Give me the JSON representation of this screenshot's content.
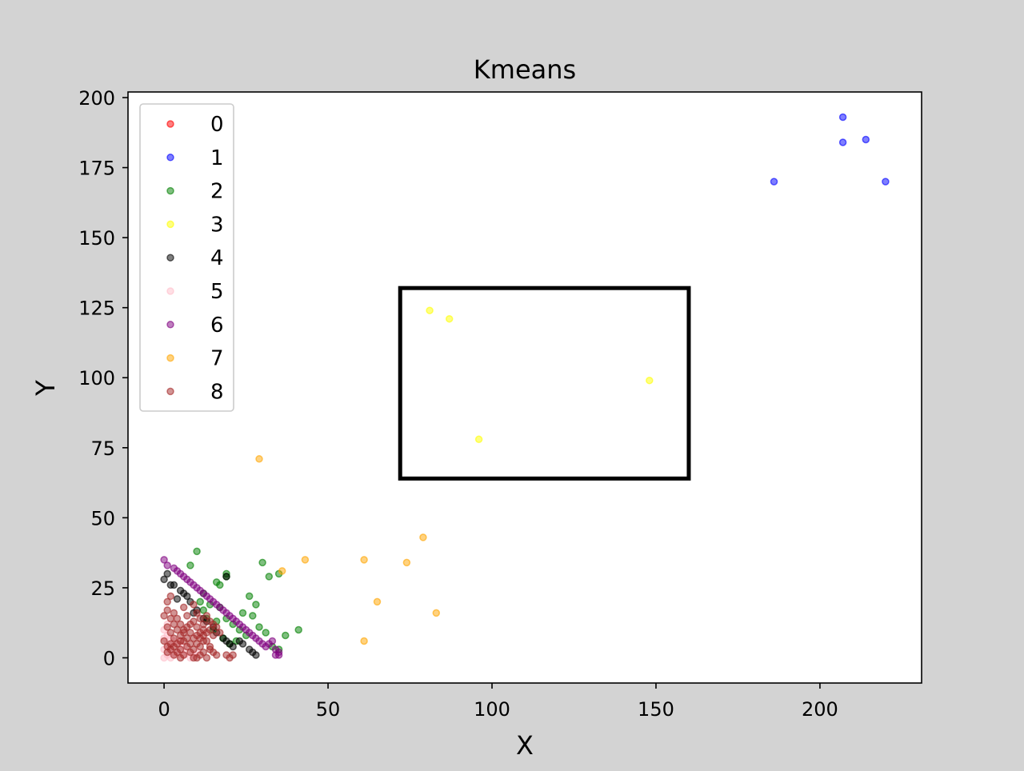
{
  "chart_data": {
    "type": "scatter",
    "title": "Kmeans",
    "xlabel": "X",
    "ylabel": "Y",
    "xlim": [
      -11,
      231
    ],
    "ylim": [
      -9,
      202
    ],
    "xticks": [
      0,
      50,
      100,
      150,
      200
    ],
    "yticks": [
      0,
      25,
      50,
      75,
      100,
      125,
      150,
      175,
      200
    ],
    "grid": false,
    "legend_position": "top-left",
    "highlight_box": {
      "x": [
        72,
        160
      ],
      "y": [
        64,
        132
      ],
      "color": "#000000"
    },
    "series": [
      {
        "name": "0",
        "color": "#ff0000",
        "points": []
      },
      {
        "name": "1",
        "color": "#0000ff",
        "points": [
          [
            186,
            170
          ],
          [
            207,
            193
          ],
          [
            207,
            184
          ],
          [
            214,
            185
          ],
          [
            220,
            170
          ]
        ]
      },
      {
        "name": "2",
        "color": "#008000",
        "points": [
          [
            10,
            38
          ],
          [
            19,
            30
          ],
          [
            19,
            29
          ],
          [
            16,
            27
          ],
          [
            17,
            26
          ],
          [
            8,
            33
          ],
          [
            30,
            34
          ],
          [
            32,
            29
          ],
          [
            35,
            30
          ],
          [
            26,
            22
          ],
          [
            28,
            19
          ],
          [
            24,
            16
          ],
          [
            27,
            15
          ],
          [
            12,
            23
          ],
          [
            14,
            19
          ],
          [
            17,
            18
          ],
          [
            19,
            14
          ],
          [
            21,
            12
          ],
          [
            23,
            10
          ],
          [
            25,
            8
          ],
          [
            29,
            11
          ],
          [
            31,
            9
          ],
          [
            37,
            8
          ],
          [
            41,
            10
          ],
          [
            33,
            4
          ],
          [
            35,
            3
          ],
          [
            22,
            6
          ],
          [
            20,
            5
          ],
          [
            18,
            7
          ],
          [
            15,
            10
          ],
          [
            13,
            14
          ],
          [
            12,
            17
          ],
          [
            16,
            13
          ],
          [
            11,
            20
          ]
        ]
      },
      {
        "name": "3",
        "color": "#ffff00",
        "points": [
          [
            81,
            124
          ],
          [
            87,
            121
          ],
          [
            96,
            78
          ],
          [
            148,
            99
          ]
        ]
      },
      {
        "name": "4",
        "color": "#000000",
        "points": [
          [
            0,
            28
          ],
          [
            1,
            30
          ],
          [
            2,
            26
          ],
          [
            3,
            26
          ],
          [
            5,
            24
          ],
          [
            6,
            23
          ],
          [
            7,
            22
          ],
          [
            9,
            16
          ],
          [
            10,
            17
          ],
          [
            12,
            14
          ],
          [
            13,
            13
          ],
          [
            15,
            11
          ],
          [
            16,
            9
          ],
          [
            18,
            7
          ],
          [
            19,
            6
          ],
          [
            20,
            5
          ],
          [
            21,
            4
          ],
          [
            23,
            6
          ],
          [
            24,
            5
          ],
          [
            26,
            3
          ],
          [
            27,
            2
          ],
          [
            28,
            1
          ],
          [
            19,
            29
          ],
          [
            8,
            20
          ],
          [
            4,
            21
          ]
        ]
      },
      {
        "name": "5",
        "color": "#ffc0cb",
        "points": [
          [
            0,
            0
          ],
          [
            1,
            1
          ],
          [
            2,
            0
          ],
          [
            3,
            2
          ],
          [
            4,
            1
          ],
          [
            5,
            3
          ],
          [
            6,
            1
          ],
          [
            7,
            2
          ],
          [
            8,
            0
          ],
          [
            0,
            3
          ],
          [
            1,
            5
          ],
          [
            2,
            4
          ],
          [
            3,
            6
          ],
          [
            4,
            5
          ],
          [
            0,
            7
          ],
          [
            1,
            8
          ],
          [
            2,
            7
          ],
          [
            5,
            6
          ],
          [
            6,
            4
          ],
          [
            0,
            10
          ],
          [
            1,
            12
          ],
          [
            9,
            1
          ],
          [
            10,
            2
          ]
        ]
      },
      {
        "name": "6",
        "color": "#800080",
        "points": [
          [
            0,
            35
          ],
          [
            1,
            33
          ],
          [
            3,
            32
          ],
          [
            4,
            31
          ],
          [
            5,
            30
          ],
          [
            6,
            29
          ],
          [
            7,
            28
          ],
          [
            8,
            27
          ],
          [
            9,
            26
          ],
          [
            10,
            25
          ],
          [
            11,
            24
          ],
          [
            12,
            23
          ],
          [
            13,
            22
          ],
          [
            14,
            21
          ],
          [
            15,
            20
          ],
          [
            16,
            19
          ],
          [
            17,
            18
          ],
          [
            18,
            17
          ],
          [
            19,
            16
          ],
          [
            20,
            15
          ],
          [
            21,
            14
          ],
          [
            22,
            13
          ],
          [
            23,
            12
          ],
          [
            24,
            11
          ],
          [
            25,
            10
          ],
          [
            26,
            9
          ],
          [
            27,
            8
          ],
          [
            28,
            7
          ],
          [
            29,
            6
          ],
          [
            30,
            5
          ],
          [
            31,
            4
          ],
          [
            32,
            5
          ],
          [
            33,
            6
          ],
          [
            34,
            3
          ],
          [
            35,
            2
          ],
          [
            35,
            1
          ],
          [
            34,
            1
          ]
        ]
      },
      {
        "name": "7",
        "color": "#ffa500",
        "points": [
          [
            29,
            71
          ],
          [
            36,
            31
          ],
          [
            43,
            35
          ],
          [
            61,
            35
          ],
          [
            65,
            20
          ],
          [
            61,
            6
          ],
          [
            74,
            34
          ],
          [
            79,
            43
          ],
          [
            83,
            16
          ]
        ]
      },
      {
        "name": "8",
        "color": "#a52a2a",
        "points": [
          [
            1,
            20
          ],
          [
            2,
            22
          ],
          [
            1,
            17
          ],
          [
            0,
            15
          ],
          [
            2,
            14
          ],
          [
            3,
            12
          ],
          [
            1,
            11
          ],
          [
            4,
            10
          ],
          [
            2,
            9
          ],
          [
            5,
            8
          ],
          [
            3,
            7
          ],
          [
            6,
            6
          ],
          [
            4,
            5
          ],
          [
            7,
            4
          ],
          [
            5,
            3
          ],
          [
            8,
            2
          ],
          [
            6,
            1
          ],
          [
            9,
            0
          ],
          [
            7,
            11
          ],
          [
            8,
            12
          ],
          [
            9,
            13
          ],
          [
            10,
            11
          ],
          [
            11,
            9
          ],
          [
            12,
            8
          ],
          [
            13,
            6
          ],
          [
            14,
            4
          ],
          [
            12,
            2
          ],
          [
            11,
            1
          ],
          [
            13,
            0
          ],
          [
            10,
            5
          ],
          [
            9,
            7
          ],
          [
            8,
            9
          ],
          [
            6,
            10
          ],
          [
            5,
            12
          ],
          [
            4,
            14
          ],
          [
            3,
            16
          ],
          [
            7,
            15
          ],
          [
            10,
            16
          ],
          [
            11,
            14
          ],
          [
            12,
            12
          ],
          [
            14,
            10
          ],
          [
            15,
            8
          ],
          [
            14,
            3
          ],
          [
            15,
            2
          ],
          [
            16,
            1
          ],
          [
            6,
            18
          ],
          [
            9,
            19
          ],
          [
            2,
            3
          ],
          [
            1,
            4
          ],
          [
            0,
            6
          ],
          [
            3,
            1
          ],
          [
            4,
            2
          ],
          [
            5,
            0
          ],
          [
            8,
            5
          ],
          [
            9,
            3
          ],
          [
            10,
            0
          ],
          [
            11,
            4
          ],
          [
            12,
            6
          ],
          [
            13,
            9
          ],
          [
            7,
            7
          ],
          [
            6,
            9
          ],
          [
            5,
            6
          ],
          [
            3,
            4
          ],
          [
            2,
            5
          ],
          [
            1,
            2
          ],
          [
            20,
            0
          ],
          [
            21,
            1
          ],
          [
            19,
            1
          ],
          [
            13,
            15
          ],
          [
            14,
            13
          ],
          [
            15,
            12
          ],
          [
            16,
            11
          ],
          [
            12,
            10
          ],
          [
            17,
            9
          ],
          [
            11,
            7
          ],
          [
            10,
            8
          ]
        ]
      }
    ]
  }
}
